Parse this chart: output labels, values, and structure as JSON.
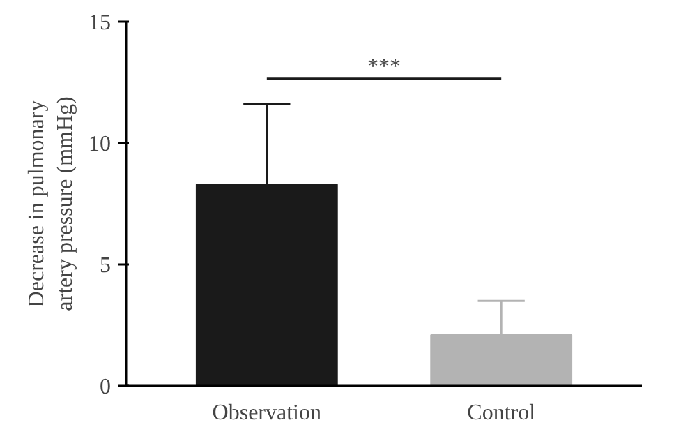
{
  "chart_data": {
    "type": "bar",
    "ylabel": "Decrease in pulmonary artery pressure (mmHg)",
    "categories": [
      "Observation",
      "Control"
    ],
    "values": [
      8.3,
      2.1
    ],
    "colors": [
      "#1a1a1a",
      "#b3b3b3"
    ],
    "errors": [
      3.3,
      1.4
    ],
    "ylim": [
      0,
      15
    ],
    "yticks": [
      0,
      5,
      10,
      15
    ],
    "grid": false,
    "annotations": [
      "***"
    ]
  }
}
